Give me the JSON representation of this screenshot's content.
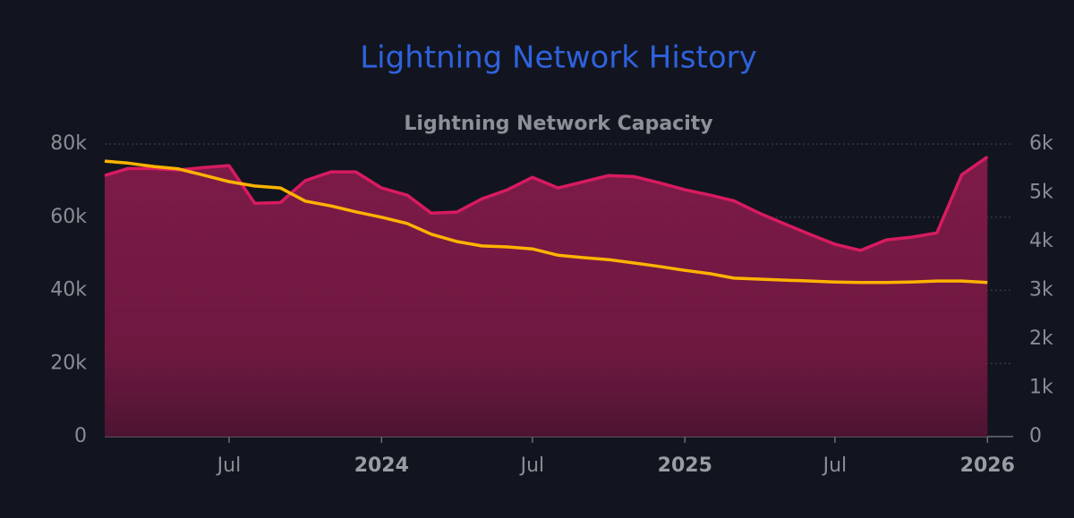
{
  "chart_data": {
    "type": "line",
    "title": "Lightning Network History",
    "subtitle": "Lightning Network Capacity",
    "x": [
      "2023-02",
      "2023-03",
      "2023-04",
      "2023-05",
      "2023-06",
      "2023-07",
      "2023-08",
      "2023-09",
      "2023-10",
      "2023-11",
      "2023-12",
      "2024-01",
      "2024-02",
      "2024-03",
      "2024-04",
      "2024-05",
      "2024-06",
      "2024-07",
      "2024-08",
      "2024-09",
      "2024-10",
      "2024-11",
      "2024-12",
      "2025-01",
      "2025-02",
      "2025-03",
      "2025-04",
      "2025-05",
      "2025-06",
      "2025-07",
      "2025-08",
      "2025-09",
      "2025-10",
      "2025-11",
      "2025-12",
      "2026-01"
    ],
    "xlim": [
      "2023-02",
      "2026-02"
    ],
    "xticks": [
      {
        "value": "2023-07",
        "label": "Jul"
      },
      {
        "value": "2024-01",
        "label": "2024"
      },
      {
        "value": "2024-07",
        "label": "Jul"
      },
      {
        "value": "2025-01",
        "label": "2025"
      },
      {
        "value": "2025-07",
        "label": "Jul"
      },
      {
        "value": "2026-01",
        "label": "2026"
      }
    ],
    "ylim": [
      0,
      80000
    ],
    "yticks": [
      0,
      {
        "value": 20000,
        "label": "20k"
      },
      {
        "value": 40000,
        "label": "40k"
      },
      {
        "value": 60000,
        "label": "60k"
      },
      {
        "value": 80000,
        "label": "80k"
      }
    ],
    "y2lim": [
      0,
      6000
    ],
    "y2ticks": [
      0,
      {
        "value": 1000,
        "label": "1k"
      },
      {
        "value": 2000,
        "label": "2k"
      },
      {
        "value": 3000,
        "label": "3k"
      },
      {
        "value": 4000,
        "label": "4k"
      },
      {
        "value": 5000,
        "label": "5k"
      },
      {
        "value": 6000,
        "label": "6k"
      }
    ],
    "grid": true,
    "series": [
      {
        "color": "#d81b60",
        "fill": "area",
        "axis": "y",
        "values": [
          71400,
          73300,
          73300,
          72900,
          73600,
          74100,
          63800,
          64000,
          70000,
          72400,
          72400,
          68000,
          66000,
          61100,
          61400,
          65000,
          67500,
          70900,
          68000,
          69700,
          71400,
          71100,
          69400,
          67500,
          66000,
          64500,
          61100,
          58200,
          55300,
          52600,
          50900,
          53800,
          54500,
          55700,
          71600,
          76500
        ]
      },
      {
        "color": "#ffb300",
        "fill": "none",
        "axis": "y2",
        "values": [
          5650,
          5610,
          5540,
          5490,
          5360,
          5230,
          5140,
          5100,
          4830,
          4730,
          4610,
          4500,
          4370,
          4150,
          4000,
          3910,
          3890,
          3850,
          3720,
          3670,
          3630,
          3560,
          3490,
          3410,
          3340,
          3250,
          3230,
          3210,
          3190,
          3170,
          3160,
          3160,
          3170,
          3190,
          3190,
          3160
        ]
      }
    ]
  }
}
